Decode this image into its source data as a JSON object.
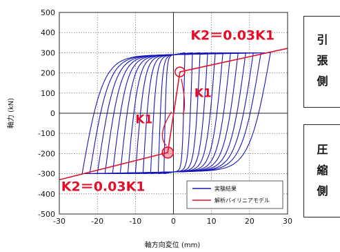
{
  "chart_data": {
    "type": "line",
    "xlabel": "軸方向変位 (mm)",
    "ylabel": "軸力 (kN)",
    "xlim": [
      -30,
      30
    ],
    "ylim": [
      -500,
      500
    ],
    "xticks": [
      -30,
      -20,
      -10,
      0,
      10,
      20,
      30
    ],
    "yticks": [
      500,
      400,
      300,
      200,
      100,
      0,
      -100,
      -200,
      -300,
      -400,
      -500
    ],
    "grid": true,
    "legend_position": "bottom-right",
    "colors": {
      "experiment": "#1515b8",
      "model": "#e0102a"
    },
    "series": [
      {
        "name": "実験結果",
        "kind": "hysteresis_loops",
        "loops": [
          {
            "x_pos": 3.0,
            "x_neg": -2.5
          },
          {
            "x_pos": 5.0,
            "x_neg": -4.0
          },
          {
            "x_pos": 7.0,
            "x_neg": -6.0
          },
          {
            "x_pos": 9.0,
            "x_neg": -8.0
          },
          {
            "x_pos": 11.0,
            "x_neg": -10.0
          },
          {
            "x_pos": 13.0,
            "x_neg": -12.0
          },
          {
            "x_pos": 15.0,
            "x_neg": -14.0
          },
          {
            "x_pos": 17.0,
            "x_neg": -16.0
          },
          {
            "x_pos": 19.0,
            "x_neg": -18.0
          },
          {
            "x_pos": 21.0,
            "x_neg": -20.0
          },
          {
            "x_pos": 23.0,
            "x_neg": -22.0
          },
          {
            "x_pos": 25.5,
            "x_neg": -24.0
          }
        ],
        "peak_force": [
          300,
          -300
        ]
      },
      {
        "name": "解析バイリニアモデル",
        "kind": "bilinear",
        "points": [
          [
            -30,
            -330
          ],
          [
            -1.5,
            -195
          ],
          [
            1.7,
            205
          ],
          [
            30,
            322
          ]
        ]
      }
    ],
    "annotations": [
      {
        "text": "K2＝0.03K1",
        "x": 4.5,
        "y": 365
      },
      {
        "text": "K2＝0.03K1",
        "x": -29.5,
        "y": -385
      },
      {
        "text": "K1",
        "x": 5.5,
        "y": 80
      },
      {
        "text": "K1",
        "x": -10.0,
        "y": -50
      }
    ],
    "yield_points": [
      [
        1.7,
        205
      ],
      [
        -1.5,
        -195
      ]
    ]
  },
  "side_labels": {
    "tension": [
      "引",
      "張",
      "側"
    ],
    "compression": [
      "圧",
      "縮",
      "側"
    ]
  }
}
